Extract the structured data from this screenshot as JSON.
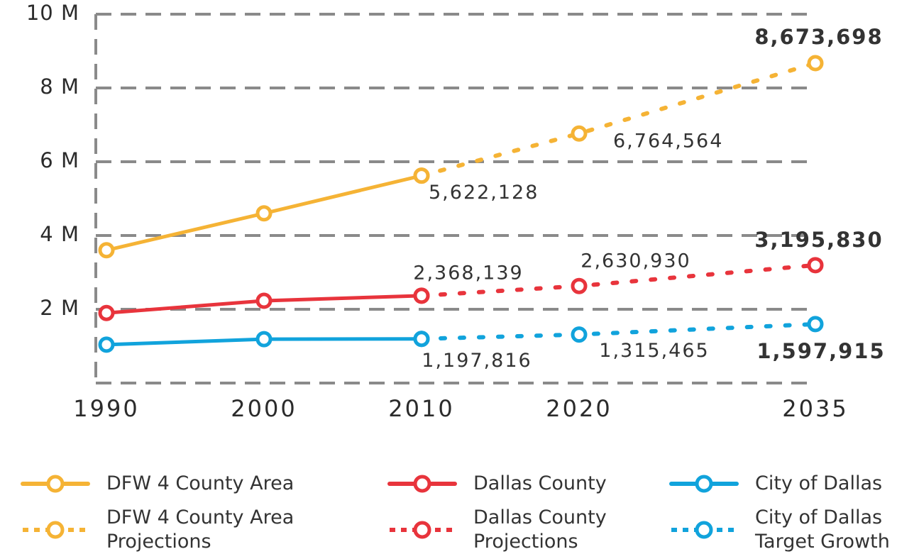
{
  "chart_data": {
    "type": "line",
    "x": [
      1990,
      2000,
      2010,
      2020,
      2035
    ],
    "xlim": [
      1989,
      2036
    ],
    "xticks": [
      1990,
      2000,
      2010,
      2020,
      2035
    ],
    "ylim": [
      0,
      10000000
    ],
    "yticks": [
      {
        "value": 2000000,
        "label": "2 M"
      },
      {
        "value": 4000000,
        "label": "4 M"
      },
      {
        "value": 6000000,
        "label": "6 M"
      },
      {
        "value": 8000000,
        "label": "8 M"
      },
      {
        "value": 10000000,
        "label": "10 M"
      }
    ],
    "grid": true,
    "series": [
      {
        "name": "DFW 4 County Area",
        "color": "#f5b335",
        "dash": "solid",
        "values": [
          3600000,
          4600000,
          5622128,
          null,
          null
        ],
        "value_labels": [
          null,
          null,
          "5,622,128",
          null,
          null
        ]
      },
      {
        "name": "DFW 4 County Area Projections",
        "color": "#f5b335",
        "dash": "dotted",
        "values": [
          null,
          null,
          5622128,
          6764564,
          8673698
        ],
        "value_labels": [
          null,
          null,
          null,
          "6,764,564",
          "8,673,698"
        ]
      },
      {
        "name": "Dallas County",
        "color": "#e8343c",
        "dash": "solid",
        "values": [
          1900000,
          2230000,
          2368139,
          null,
          null
        ],
        "value_labels": [
          null,
          null,
          "2,368,139",
          null,
          null
        ]
      },
      {
        "name": "Dallas County Projections",
        "color": "#e8343c",
        "dash": "dotted",
        "values": [
          null,
          null,
          2368139,
          2630930,
          3195830
        ],
        "value_labels": [
          null,
          null,
          null,
          "2,630,930",
          "3,195,830"
        ]
      },
      {
        "name": "City of Dallas",
        "color": "#11a3dc",
        "dash": "solid",
        "values": [
          1040000,
          1190000,
          1197816,
          null,
          null
        ],
        "value_labels": [
          null,
          null,
          "1,197,816",
          null,
          null
        ]
      },
      {
        "name": "City of Dallas Target Growth",
        "color": "#11a3dc",
        "dash": "dotted",
        "values": [
          null,
          null,
          1197816,
          1315465,
          1597915
        ],
        "value_labels": [
          null,
          null,
          null,
          "1,315,465",
          "1,597,915"
        ]
      }
    ]
  }
}
